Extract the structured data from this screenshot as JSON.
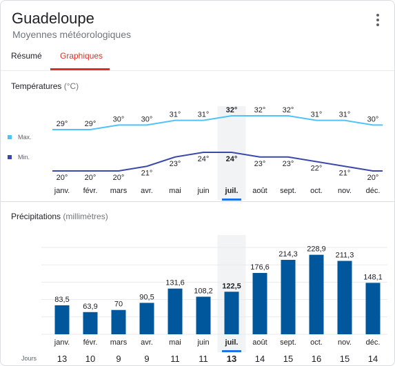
{
  "header": {
    "title": "Guadeloupe",
    "subtitle": "Moyennes météorologiques",
    "more_icon": "more-vert-icon"
  },
  "tabs": [
    {
      "label": "Résumé",
      "active": false
    },
    {
      "label": "Graphiques",
      "active": true
    }
  ],
  "colors": {
    "accent": "#d93025",
    "max_line": "#4fc3f7",
    "min_line": "#3949ab",
    "bar": "#01579b",
    "highlight": "#1a73e8",
    "highlight_band": "#f1f3f4"
  },
  "months": [
    "janv.",
    "févr.",
    "mars",
    "avr.",
    "mai",
    "juin",
    "juil.",
    "août",
    "sept.",
    "oct.",
    "nov.",
    "déc."
  ],
  "selected_month_index": 6,
  "temperatures": {
    "title": "Températures",
    "unit": "(°C)",
    "legend_max": "Max.",
    "legend_min": "Min."
  },
  "precipitation": {
    "title": "Précipitations",
    "unit": "(millimètres)",
    "days_label": "Jours"
  },
  "chart_data": [
    {
      "type": "line",
      "title": "Températures (°C)",
      "x": [
        "janv.",
        "févr.",
        "mars",
        "avr.",
        "mai",
        "juin",
        "juil.",
        "août",
        "sept.",
        "oct.",
        "nov.",
        "déc."
      ],
      "series": [
        {
          "name": "Max.",
          "values": [
            29,
            29,
            30,
            30,
            31,
            31,
            32,
            32,
            32,
            31,
            31,
            30
          ],
          "labels": [
            "29°",
            "29°",
            "30°",
            "30°",
            "31°",
            "31°",
            "32°",
            "32°",
            "32°",
            "31°",
            "31°",
            "30°"
          ]
        },
        {
          "name": "Min.",
          "values": [
            20,
            20,
            20,
            21,
            23,
            24,
            24,
            23,
            23,
            22,
            21,
            20
          ],
          "labels": [
            "20°",
            "20°",
            "20°",
            "21°",
            "23°",
            "24°",
            "24°",
            "23°",
            "23°",
            "22°",
            "21°",
            "20°"
          ]
        }
      ]
    },
    {
      "type": "bar",
      "title": "Précipitations (millimètres)",
      "categories": [
        "janv.",
        "févr.",
        "mars",
        "avr.",
        "mai",
        "juin",
        "juil.",
        "août",
        "sept.",
        "oct.",
        "nov.",
        "déc."
      ],
      "values": [
        83.5,
        63.9,
        70,
        90.5,
        131.6,
        108.2,
        122.5,
        176.6,
        214.3,
        228.9,
        211.3,
        148.1
      ],
      "labels": [
        "83,5",
        "63,9",
        "70",
        "90,5",
        "131,6",
        "108,2",
        "122,5",
        "176,6",
        "214,3",
        "228,9",
        "211,3",
        "148,1"
      ],
      "days": [
        13,
        10,
        9,
        9,
        11,
        11,
        13,
        14,
        15,
        16,
        15,
        14
      ],
      "grid": true
    }
  ]
}
